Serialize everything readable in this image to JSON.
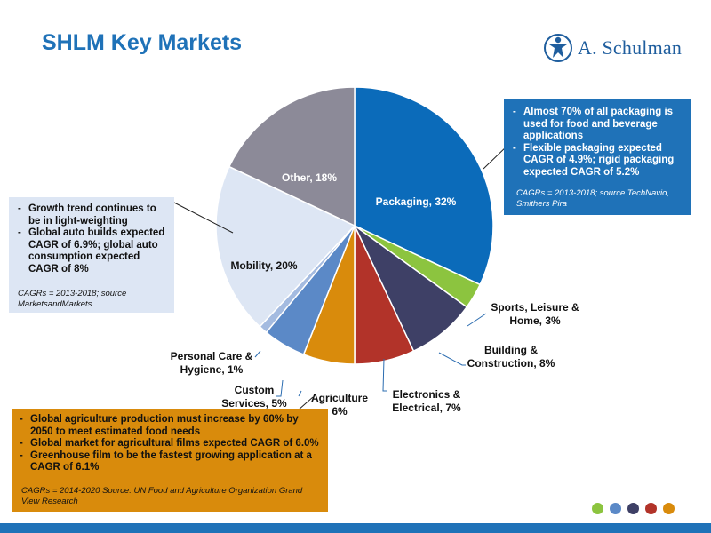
{
  "header": {
    "title": "SHLM Key Markets",
    "logo_text": "A. Schulman"
  },
  "chart_data": {
    "type": "pie",
    "title": "",
    "slices": [
      {
        "label": "Packaging",
        "value": 32,
        "display": "Packaging, 32%",
        "color": "#0b6bba"
      },
      {
        "label": "Sports, Leisure & Home",
        "value": 3,
        "display": "Sports, Leisure & Home, 3%",
        "color": "#8cc43f"
      },
      {
        "label": "Building & Construction",
        "value": 8,
        "display": "Building & Construction, 8%",
        "color": "#3e4066"
      },
      {
        "label": "Electronics & Electrical",
        "value": 7,
        "display": "Electronics & Electrical, 7%",
        "color": "#b23329"
      },
      {
        "label": "Agriculture",
        "value": 6,
        "display": "Agriculture 6%",
        "color": "#d98b0c"
      },
      {
        "label": "Custom Services",
        "value": 5,
        "display": "Custom Services, 5%",
        "color": "#5b89c7"
      },
      {
        "label": "Personal Care & Hygiene",
        "value": 1,
        "display": "Personal Care & Hygiene, 1%",
        "color": "#a4bbe0"
      },
      {
        "label": "Mobility",
        "value": 20,
        "display": "Mobility, 20%",
        "color": "#dde6f4"
      },
      {
        "label": "Other",
        "value": 18,
        "display": "Other, 18%",
        "color": "#8c8a98"
      }
    ]
  },
  "callouts": {
    "packaging": {
      "bullets": [
        "Almost 70% of all packaging is used for food and beverage applications",
        "Flexible packaging expected CAGR of 4.9%; rigid packaging expected CAGR of 5.2%"
      ],
      "source": "CAGRs = 2013-2018; source TechNavio, Smithers Pira"
    },
    "mobility": {
      "bullets": [
        "Growth trend continues to be in light-weighting",
        "Global auto builds expected CAGR of 6.9%; global auto consumption expected CAGR of 8%"
      ],
      "source": "CAGRs = 2013-2018; source MarketsandMarkets"
    },
    "agriculture": {
      "bullets": [
        "Global agriculture production must increase by 60% by 2050 to meet estimated food needs",
        "Global market for agricultural films expected CAGR of 6.0%",
        "Greenhouse film to be the fastest growing application at a CAGR of 6.1%"
      ],
      "source": "CAGRs = 2014-2020 Source: UN Food and Agriculture Organization Grand View Research"
    }
  },
  "footer": {
    "dot_colors": [
      "#8cc43f",
      "#5b89c7",
      "#3e4066",
      "#b23329",
      "#d98b0c"
    ]
  }
}
